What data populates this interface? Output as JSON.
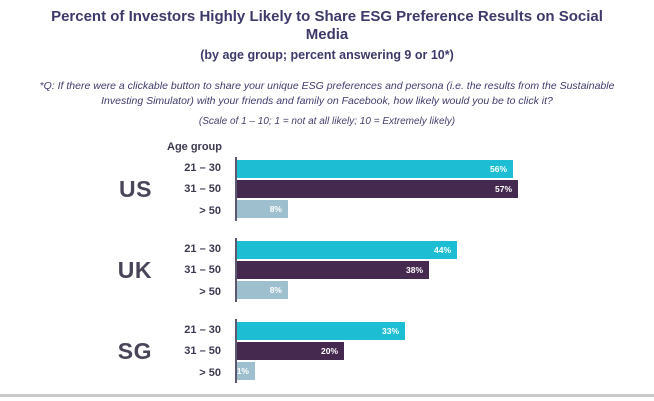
{
  "chart_data": {
    "type": "bar",
    "orientation": "horizontal",
    "title": "Percent of Investors Highly Likely to Share ESG Preference Results on Social Media",
    "subtitle": "(by age group; percent answering 9 or 10*)",
    "footnote": "*Q: If there were a clickable button to share your unique ESG preferences and persona (i.e. the results from the Sustainable Investing Simulator) with your friends and family on Facebook, how likely would you be to click it?",
    "scale_note": "(Scale of 1 – 10; 1 = not at all likely; 10 = Extremely likely)",
    "axis_header": "Age group",
    "categories": [
      "21 – 30",
      "31 – 50",
      "> 50"
    ],
    "unit": "%",
    "xlim": [
      0,
      60
    ],
    "legend": "none",
    "value_labels": "inside-end-white",
    "series": [
      {
        "name": "US",
        "values": [
          56,
          57,
          8
        ]
      },
      {
        "name": "UK",
        "values": [
          44,
          38,
          8
        ]
      },
      {
        "name": "SG",
        "values": [
          33,
          20,
          1
        ]
      }
    ],
    "category_colors": [
      "#1dbdd3",
      "#46294f",
      "#9dbfce"
    ],
    "axis_line_color": "#5c5872",
    "title_color": "#3d3a6b"
  }
}
